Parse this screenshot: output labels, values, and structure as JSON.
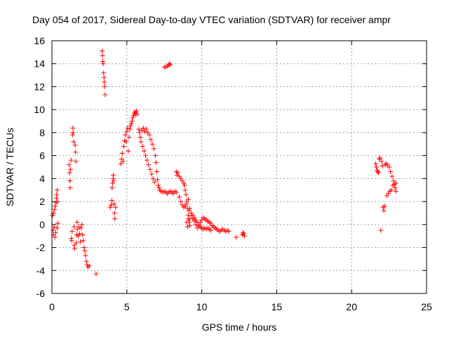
{
  "chart_data": {
    "type": "scatter",
    "title": "Day 054 of 2017, Sidereal Day-to-day VTEC variation (SDTVAR) for receiver ampr",
    "xlabel": "GPS time / hours",
    "ylabel": "SDTVAR / TECUs",
    "xlim": [
      0,
      25
    ],
    "ylim": [
      -6,
      16
    ],
    "xticks": [
      0,
      5,
      10,
      15,
      20,
      25
    ],
    "yticks": [
      -6,
      -4,
      -2,
      0,
      2,
      4,
      6,
      8,
      10,
      12,
      14,
      16
    ],
    "grid": true,
    "marker": "+",
    "color": "#ff0000",
    "series": [
      {
        "name": "SDTVAR",
        "points": [
          [
            0.05,
            0.8
          ],
          [
            0.08,
            -0.5
          ],
          [
            0.1,
            -0.9
          ],
          [
            0.12,
            1.0
          ],
          [
            0.15,
            -0.2
          ],
          [
            0.18,
            1.3
          ],
          [
            0.2,
            -1.1
          ],
          [
            0.22,
            1.6
          ],
          [
            0.25,
            -0.7
          ],
          [
            0.28,
            1.9
          ],
          [
            0.3,
            2.3
          ],
          [
            0.32,
            2.6
          ],
          [
            0.35,
            -0.3
          ],
          [
            0.35,
            3.0
          ],
          [
            0.38,
            2.0
          ],
          [
            0.4,
            0.1
          ],
          [
            1.15,
            5.2
          ],
          [
            1.18,
            4.5
          ],
          [
            1.2,
            3.8
          ],
          [
            1.22,
            3.2
          ],
          [
            1.25,
            4.8
          ],
          [
            1.28,
            5.6
          ],
          [
            1.3,
            -1.2
          ],
          [
            1.32,
            -1.4
          ],
          [
            1.35,
            -0.6
          ],
          [
            1.38,
            7.8
          ],
          [
            1.4,
            8.4
          ],
          [
            1.42,
            8.0
          ],
          [
            1.45,
            7.2
          ],
          [
            1.48,
            -0.2
          ],
          [
            1.5,
            -1.8
          ],
          [
            1.52,
            -2.1
          ],
          [
            1.55,
            6.9
          ],
          [
            1.58,
            6.3
          ],
          [
            1.6,
            5.5
          ],
          [
            1.62,
            -1.6
          ],
          [
            1.65,
            -0.9
          ],
          [
            1.68,
            0.2
          ],
          [
            1.7,
            -0.4
          ],
          [
            1.75,
            -1.0
          ],
          [
            1.8,
            -0.2
          ],
          [
            1.85,
            -0.8
          ],
          [
            1.9,
            -1.5
          ],
          [
            1.95,
            -0.3
          ],
          [
            2.0,
            0.0
          ],
          [
            2.05,
            -0.9
          ],
          [
            2.1,
            -1.4
          ],
          [
            2.15,
            -2.0
          ],
          [
            2.2,
            -2.3
          ],
          [
            2.25,
            -2.7
          ],
          [
            2.3,
            -3.2
          ],
          [
            2.35,
            -3.5
          ],
          [
            2.4,
            -3.7
          ],
          [
            2.5,
            -3.6
          ],
          [
            2.95,
            -4.3
          ],
          [
            3.35,
            15.1
          ],
          [
            3.38,
            14.7
          ],
          [
            3.4,
            14.2
          ],
          [
            3.42,
            14.0
          ],
          [
            3.45,
            13.2
          ],
          [
            3.48,
            12.8
          ],
          [
            3.5,
            12.4
          ],
          [
            3.52,
            12.0
          ],
          [
            3.55,
            11.3
          ],
          [
            3.9,
            1.5
          ],
          [
            3.95,
            1.7
          ],
          [
            4.0,
            2.1
          ],
          [
            4.02,
            3.2
          ],
          [
            4.05,
            3.6
          ],
          [
            4.08,
            4.0
          ],
          [
            4.1,
            4.3
          ],
          [
            4.12,
            3.8
          ],
          [
            4.15,
            1.8
          ],
          [
            4.18,
            1.0
          ],
          [
            4.2,
            0.5
          ],
          [
            4.25,
            1.5
          ],
          [
            4.6,
            5.3
          ],
          [
            4.65,
            5.7
          ],
          [
            4.7,
            6.2
          ],
          [
            4.75,
            5.5
          ],
          [
            4.8,
            6.8
          ],
          [
            4.85,
            7.3
          ],
          [
            4.9,
            7.8
          ],
          [
            4.95,
            7.2
          ],
          [
            5.0,
            8.1
          ],
          [
            5.05,
            8.4
          ],
          [
            5.1,
            6.4
          ],
          [
            5.15,
            7.6
          ],
          [
            5.2,
            8.3
          ],
          [
            5.25,
            8.6
          ],
          [
            5.3,
            8.8
          ],
          [
            5.35,
            9.0
          ],
          [
            5.4,
            9.3
          ],
          [
            5.45,
            9.5
          ],
          [
            5.5,
            9.7
          ],
          [
            5.55,
            9.8
          ],
          [
            5.6,
            9.6
          ],
          [
            5.65,
            9.9
          ],
          [
            5.7,
            9.6
          ],
          [
            5.8,
            8.3
          ],
          [
            5.85,
            8.0
          ],
          [
            5.9,
            7.6
          ],
          [
            5.95,
            7.2
          ],
          [
            6.0,
            8.2
          ],
          [
            6.05,
            6.8
          ],
          [
            6.1,
            8.4
          ],
          [
            6.15,
            6.4
          ],
          [
            6.2,
            8.1
          ],
          [
            6.25,
            6.0
          ],
          [
            6.3,
            8.3
          ],
          [
            6.35,
            5.6
          ],
          [
            6.4,
            8.0
          ],
          [
            6.45,
            5.2
          ],
          [
            6.5,
            7.8
          ],
          [
            6.55,
            4.8
          ],
          [
            6.6,
            7.4
          ],
          [
            6.65,
            4.4
          ],
          [
            6.7,
            7.0
          ],
          [
            6.75,
            4.0
          ],
          [
            6.8,
            6.6
          ],
          [
            6.85,
            3.7
          ],
          [
            6.9,
            6.0
          ],
          [
            6.95,
            5.4
          ],
          [
            7.0,
            4.6
          ],
          [
            7.05,
            3.9
          ],
          [
            7.1,
            3.4
          ],
          [
            7.15,
            3.2
          ],
          [
            7.2,
            3.0
          ],
          [
            7.3,
            2.9
          ],
          [
            7.4,
            2.8
          ],
          [
            7.5,
            2.9
          ],
          [
            7.6,
            2.8
          ],
          [
            7.7,
            2.7
          ],
          [
            7.8,
            2.8
          ],
          [
            7.9,
            2.9
          ],
          [
            8.0,
            2.8
          ],
          [
            8.1,
            2.7
          ],
          [
            8.2,
            2.9
          ],
          [
            8.3,
            2.8
          ],
          [
            7.5,
            13.7
          ],
          [
            7.6,
            13.7
          ],
          [
            7.7,
            13.8
          ],
          [
            7.8,
            13.9
          ],
          [
            7.85,
            14.0
          ],
          [
            7.9,
            13.9
          ],
          [
            8.3,
            4.6
          ],
          [
            8.35,
            4.3
          ],
          [
            8.4,
            4.5
          ],
          [
            8.5,
            4.2
          ],
          [
            8.6,
            4.0
          ],
          [
            8.7,
            3.8
          ],
          [
            8.8,
            3.6
          ],
          [
            8.85,
            3.4
          ],
          [
            8.9,
            3.0
          ],
          [
            8.95,
            2.6
          ],
          [
            9.0,
            2.0
          ],
          [
            9.05,
            1.4
          ],
          [
            9.1,
            0.8
          ],
          [
            9.15,
            0.2
          ],
          [
            9.2,
            -0.1
          ],
          [
            8.5,
            2.4
          ],
          [
            8.6,
            2.0
          ],
          [
            8.7,
            1.7
          ],
          [
            8.8,
            1.5
          ],
          [
            8.9,
            1.6
          ],
          [
            9.0,
            1.8
          ],
          [
            9.1,
            2.2
          ],
          [
            9.2,
            1.4
          ],
          [
            9.3,
            1.0
          ],
          [
            9.4,
            0.8
          ],
          [
            9.5,
            0.6
          ],
          [
            9.6,
            0.4
          ],
          [
            9.7,
            0.2
          ],
          [
            9.8,
            0.0
          ],
          [
            9.9,
            -0.2
          ],
          [
            10.0,
            -0.3
          ],
          [
            10.1,
            -0.4
          ],
          [
            10.2,
            -0.3
          ],
          [
            10.3,
            -0.4
          ],
          [
            10.4,
            -0.3
          ],
          [
            10.5,
            -0.4
          ],
          [
            10.6,
            -0.5
          ],
          [
            9.2,
            0.5
          ],
          [
            9.3,
            0.8
          ],
          [
            9.4,
            0.5
          ],
          [
            9.5,
            0.3
          ],
          [
            9.6,
            0.0
          ],
          [
            9.7,
            -0.3
          ],
          [
            9.8,
            -0.1
          ],
          [
            9.9,
            0.2
          ],
          [
            10.0,
            0.4
          ],
          [
            10.1,
            0.6
          ],
          [
            10.2,
            0.5
          ],
          [
            10.3,
            0.4
          ],
          [
            10.4,
            0.3
          ],
          [
            10.5,
            0.2
          ],
          [
            10.6,
            0.1
          ],
          [
            10.7,
            -0.1
          ],
          [
            10.8,
            -0.2
          ],
          [
            10.9,
            -0.3
          ],
          [
            11.0,
            -0.4
          ],
          [
            11.1,
            -0.5
          ],
          [
            11.2,
            -0.6
          ],
          [
            11.3,
            -0.5
          ],
          [
            11.4,
            -0.4
          ],
          [
            11.5,
            -0.5
          ],
          [
            11.6,
            -0.6
          ],
          [
            11.7,
            -0.5
          ],
          [
            11.8,
            -0.6
          ],
          [
            9.0,
            0.2
          ],
          [
            9.05,
            -0.2
          ],
          [
            9.1,
            0.5
          ],
          [
            9.15,
            1.2
          ],
          [
            12.3,
            -1.1
          ],
          [
            12.7,
            -0.9
          ],
          [
            12.75,
            -0.7
          ],
          [
            12.8,
            -0.8
          ],
          [
            12.85,
            -1.0
          ],
          [
            21.6,
            5.3
          ],
          [
            21.65,
            5.0
          ],
          [
            21.7,
            4.7
          ],
          [
            21.75,
            4.6
          ],
          [
            21.8,
            4.5
          ],
          [
            21.85,
            5.7
          ],
          [
            21.9,
            5.8
          ],
          [
            21.95,
            -0.5
          ],
          [
            22.0,
            5.5
          ],
          [
            22.05,
            5.1
          ],
          [
            22.1,
            1.5
          ],
          [
            22.15,
            1.2
          ],
          [
            22.2,
            1.6
          ],
          [
            22.25,
            5.2
          ],
          [
            22.3,
            5.3
          ],
          [
            22.35,
            2.5
          ],
          [
            22.4,
            5.2
          ],
          [
            22.45,
            2.7
          ],
          [
            22.5,
            5.0
          ],
          [
            22.55,
            2.9
          ],
          [
            22.6,
            4.6
          ],
          [
            22.65,
            3.0
          ],
          [
            22.7,
            4.2
          ],
          [
            22.75,
            3.4
          ],
          [
            22.8,
            3.8
          ],
          [
            22.85,
            3.5
          ],
          [
            22.9,
            3.2
          ],
          [
            22.95,
            2.9
          ],
          [
            22.95,
            3.6
          ]
        ]
      }
    ]
  }
}
